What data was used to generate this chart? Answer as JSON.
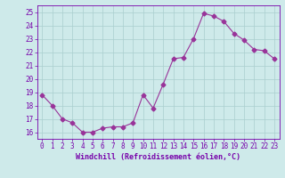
{
  "x": [
    0,
    1,
    2,
    3,
    4,
    5,
    6,
    7,
    8,
    9,
    10,
    11,
    12,
    13,
    14,
    15,
    16,
    17,
    18,
    19,
    20,
    21,
    22,
    23
  ],
  "y": [
    18.8,
    18.0,
    17.0,
    16.7,
    16.0,
    16.0,
    16.3,
    16.4,
    16.4,
    16.7,
    18.8,
    17.8,
    19.6,
    21.5,
    21.6,
    23.0,
    24.9,
    24.7,
    24.3,
    23.4,
    22.9,
    22.2,
    22.1,
    21.5
  ],
  "line_color": "#993399",
  "marker": "D",
  "marker_size": 2.5,
  "bg_color": "#ceeaea",
  "grid_color": "#aacece",
  "xlabel": "Windchill (Refroidissement éolien,°C)",
  "xlabel_color": "#7700aa",
  "tick_color": "#7700aa",
  "axis_color": "#7700aa",
  "ylim": [
    15.5,
    25.5
  ],
  "xlim": [
    -0.5,
    23.5
  ],
  "yticks": [
    16,
    17,
    18,
    19,
    20,
    21,
    22,
    23,
    24,
    25
  ],
  "xticks": [
    0,
    1,
    2,
    3,
    4,
    5,
    6,
    7,
    8,
    9,
    10,
    11,
    12,
    13,
    14,
    15,
    16,
    17,
    18,
    19,
    20,
    21,
    22,
    23
  ],
  "tick_fontsize": 5.5,
  "xlabel_fontsize": 6.0
}
